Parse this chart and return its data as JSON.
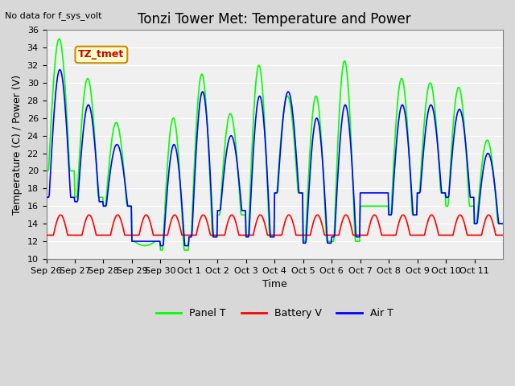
{
  "title": "Tonzi Tower Met: Temperature and Power",
  "top_left_text": "No data for f_sys_volt",
  "xlabel": "Time",
  "ylabel": "Temperature (C) / Power (V)",
  "ylim": [
    10,
    36
  ],
  "yticks": [
    10,
    12,
    14,
    16,
    18,
    20,
    22,
    24,
    26,
    28,
    30,
    32,
    34,
    36
  ],
  "xtick_labels": [
    "Sep 26",
    "Sep 27",
    "Sep 28",
    "Sep 29",
    "Sep 30",
    "Oct 1",
    "Oct 2",
    "Oct 3",
    "Oct 4",
    "Oct 5",
    "Oct 6",
    "Oct 7",
    "Oct 8",
    "Oct 9",
    "Oct 10",
    "Oct 11"
  ],
  "annotation_text": "TZ_tmet",
  "line_green": "#00ff00",
  "line_red": "#ff0000",
  "line_blue": "#0000ff",
  "legend_labels": [
    "Panel T",
    "Battery V",
    "Air T"
  ],
  "title_fontsize": 12,
  "axis_fontsize": 9,
  "tick_fontsize": 8,
  "panel_peaks": [
    35.0,
    30.5,
    25.5,
    11.5,
    26.0,
    31.0,
    26.5,
    32.0,
    28.5,
    28.5,
    32.5,
    16.0,
    30.5,
    30.0,
    29.5,
    23.5
  ],
  "panel_troughs": [
    20.0,
    17.0,
    16.0,
    12.0,
    11.0,
    12.5,
    15.0,
    12.5,
    17.5,
    12.0,
    12.0,
    16.0,
    15.0,
    17.5,
    16.0,
    14.0
  ],
  "air_peaks": [
    31.5,
    27.5,
    23.0,
    12.0,
    23.0,
    29.0,
    24.0,
    28.5,
    29.0,
    26.0,
    27.5,
    17.5,
    27.5,
    27.5,
    27.0,
    22.0
  ],
  "air_troughs": [
    17.0,
    16.5,
    16.0,
    12.0,
    11.5,
    12.5,
    15.5,
    12.5,
    17.5,
    11.8,
    12.5,
    17.5,
    15.0,
    17.5,
    17.0,
    14.0
  ],
  "batt_base": 12.7,
  "batt_amp": 2.3
}
